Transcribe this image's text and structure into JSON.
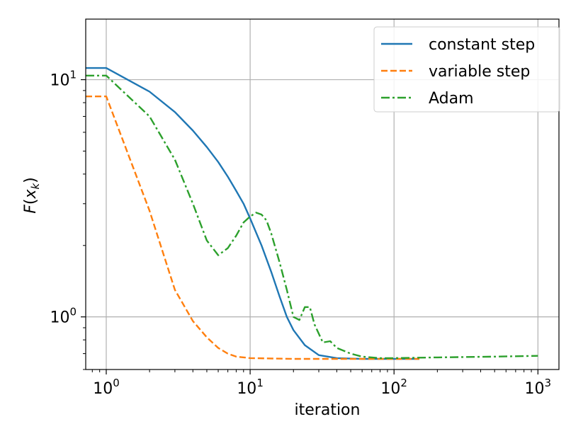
{
  "chart_data": {
    "type": "line",
    "xscale": "log",
    "yscale": "log",
    "xlabel": "iteration",
    "ylabel": "F(x_k)",
    "xlim": [
      0.72,
      1400
    ],
    "ylim": [
      0.6,
      18
    ],
    "grid": true,
    "legend_placement": "top-right",
    "x_ticks": [
      {
        "value": 1,
        "base": "10",
        "exp": "0"
      },
      {
        "value": 10,
        "base": "10",
        "exp": "1"
      },
      {
        "value": 100,
        "base": "10",
        "exp": "2"
      },
      {
        "value": 1000,
        "base": "10",
        "exp": "3"
      }
    ],
    "y_ticks": [
      {
        "value": 1,
        "base": "10",
        "exp": "0"
      },
      {
        "value": 10,
        "base": "10",
        "exp": "1"
      }
    ],
    "y_minor_ticks": [
      0.6,
      0.7,
      0.8,
      0.9,
      2,
      3,
      4,
      5,
      6,
      7,
      8,
      9
    ],
    "series": [
      {
        "name": "constant step",
        "color": "#1f77b4",
        "style": "solid",
        "points": [
          [
            0.72,
            11.2
          ],
          [
            1,
            11.2
          ],
          [
            2,
            8.9
          ],
          [
            3,
            7.3
          ],
          [
            4,
            6.1
          ],
          [
            5,
            5.2
          ],
          [
            6,
            4.5
          ],
          [
            7,
            3.9
          ],
          [
            8,
            3.4
          ],
          [
            9,
            3.0
          ],
          [
            10,
            2.6
          ],
          [
            12,
            2.0
          ],
          [
            14,
            1.55
          ],
          [
            16,
            1.22
          ],
          [
            18,
            1.0
          ],
          [
            20,
            0.88
          ],
          [
            24,
            0.76
          ],
          [
            30,
            0.69
          ],
          [
            40,
            0.67
          ],
          [
            60,
            0.665
          ],
          [
            100,
            0.665
          ],
          [
            150,
            0.665
          ]
        ]
      },
      {
        "name": "variable step",
        "color": "#ff7f0e",
        "style": "dashed",
        "points": [
          [
            0.72,
            8.5
          ],
          [
            1,
            8.5
          ],
          [
            2,
            2.8
          ],
          [
            3,
            1.3
          ],
          [
            4,
            0.96
          ],
          [
            5,
            0.82
          ],
          [
            6,
            0.74
          ],
          [
            7,
            0.7
          ],
          [
            8,
            0.68
          ],
          [
            10,
            0.67
          ],
          [
            20,
            0.665
          ],
          [
            50,
            0.665
          ],
          [
            100,
            0.665
          ],
          [
            150,
            0.665
          ]
        ]
      },
      {
        "name": "Adam",
        "color": "#2ca02c",
        "style": "dashdot",
        "points": [
          [
            0.72,
            10.4
          ],
          [
            1,
            10.4
          ],
          [
            2,
            7.0
          ],
          [
            3,
            4.6
          ],
          [
            4,
            3.0
          ],
          [
            5,
            2.1
          ],
          [
            6,
            1.82
          ],
          [
            7,
            1.95
          ],
          [
            8,
            2.2
          ],
          [
            9,
            2.5
          ],
          [
            10,
            2.65
          ],
          [
            11,
            2.75
          ],
          [
            12,
            2.7
          ],
          [
            13,
            2.55
          ],
          [
            14,
            2.25
          ],
          [
            16,
            1.7
          ],
          [
            18,
            1.3
          ],
          [
            20,
            1.0
          ],
          [
            22,
            0.97
          ],
          [
            24,
            1.1
          ],
          [
            26,
            1.1
          ],
          [
            28,
            0.93
          ],
          [
            32,
            0.78
          ],
          [
            36,
            0.79
          ],
          [
            40,
            0.74
          ],
          [
            50,
            0.7
          ],
          [
            60,
            0.68
          ],
          [
            80,
            0.67
          ],
          [
            100,
            0.67
          ],
          [
            200,
            0.675
          ],
          [
            500,
            0.68
          ],
          [
            1000,
            0.685
          ]
        ]
      }
    ]
  }
}
